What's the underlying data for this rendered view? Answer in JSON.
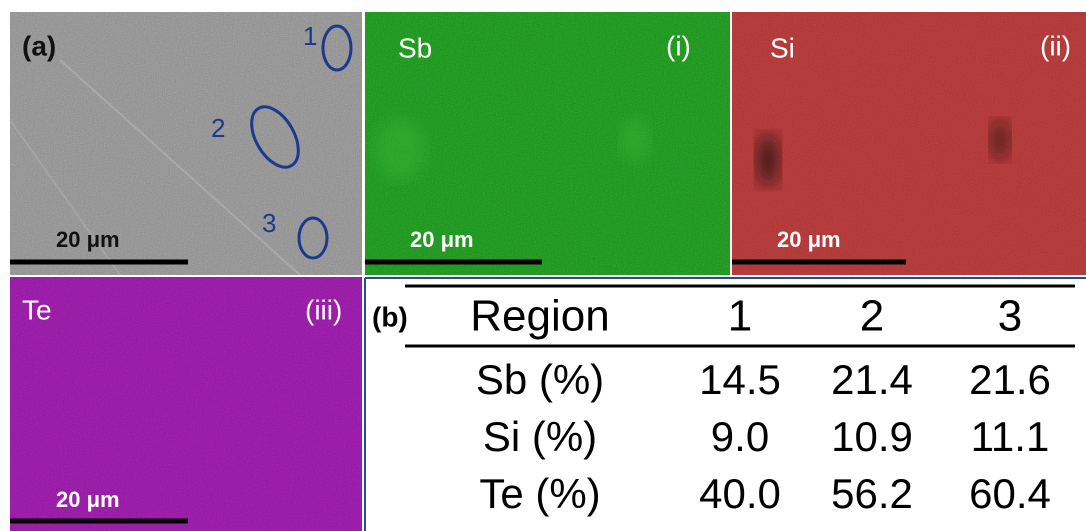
{
  "panel_a": {
    "label": "(a)",
    "regions": [
      "1",
      "2",
      "3"
    ],
    "scale_bar": "20 μm"
  },
  "maps": [
    {
      "element": "Sb",
      "index": "(i)",
      "scale_bar": "20 μm"
    },
    {
      "element": "Si",
      "index": "(ii)",
      "scale_bar": "20 μm"
    },
    {
      "element": "Te",
      "index": "(iii)",
      "scale_bar": "20 μm"
    }
  ],
  "table": {
    "label": "(b)",
    "header": [
      "Region",
      "1",
      "2",
      "3"
    ],
    "rows": [
      [
        "Sb (%)",
        "14.5",
        "21.4",
        "21.6"
      ],
      [
        "Si (%)",
        "9.0",
        "10.9",
        "11.1"
      ],
      [
        "Te (%)",
        "40.0",
        "56.2",
        "60.4"
      ]
    ]
  }
}
